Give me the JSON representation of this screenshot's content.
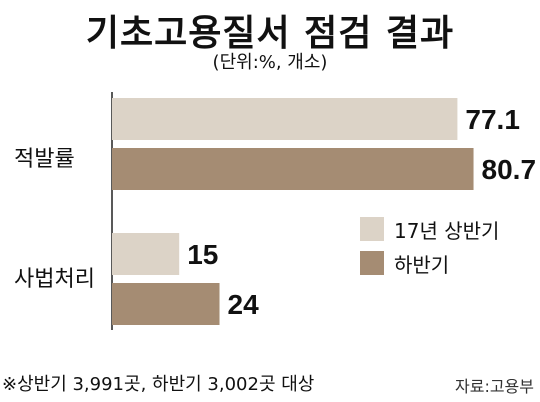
{
  "title": "기초고용질서 점검 결과",
  "unit_note": "(단위:%, 개소)",
  "footnote": "※상반기 3,991곳, 하반기 3,002곳 대상",
  "source": "자료:고용부",
  "colors": {
    "first_half": "#dcd3c7",
    "second_half": "#a58c73"
  },
  "chart_data": {
    "type": "bar",
    "orientation": "horizontal",
    "categories": [
      "적발률",
      "사법처리"
    ],
    "series": [
      {
        "name": "17년 상반기",
        "values": [
          77.1,
          15
        ]
      },
      {
        "name": "하반기",
        "values": [
          80.7,
          24
        ]
      }
    ],
    "value_labels": [
      [
        "77.1",
        "15"
      ],
      [
        "80.7",
        "24"
      ]
    ],
    "xlim": [
      0,
      100
    ],
    "legend_position": "right",
    "grid": false
  }
}
